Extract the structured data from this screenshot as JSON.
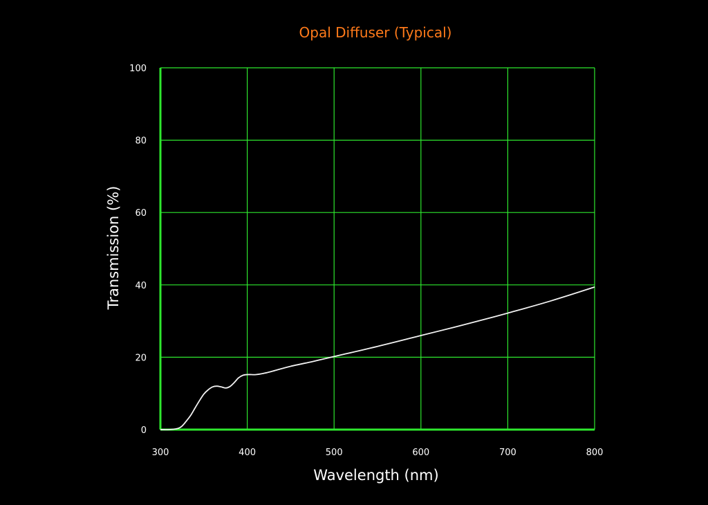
{
  "chart_data": {
    "type": "line",
    "title": "Opal Diffuser (Typical)",
    "xlabel": "Wavelength (nm)",
    "ylabel": "Transmission (%)",
    "xlim": [
      300,
      800
    ],
    "ylim": [
      0,
      100
    ],
    "x_ticks": [
      300,
      400,
      500,
      600,
      700,
      800
    ],
    "y_ticks": [
      0,
      20,
      40,
      60,
      80,
      100
    ],
    "grid": true,
    "colors": {
      "background": "#000000",
      "grid": "#2ee82e",
      "line": "#f2f2f2",
      "title": "#ff7a1a",
      "text": "#ffffff"
    },
    "series": [
      {
        "x": [
          300,
          310,
          320,
          325,
          330,
          335,
          340,
          345,
          350,
          355,
          360,
          365,
          370,
          375,
          380,
          385,
          390,
          395,
          400,
          405,
          410,
          420,
          430,
          450,
          475,
          500,
          550,
          600,
          650,
          700,
          750,
          800
        ],
        "y": [
          0,
          0,
          0.3,
          1,
          2.4,
          4,
          6,
          8,
          9.8,
          11,
          11.8,
          12,
          11.8,
          11.5,
          11.9,
          13,
          14.3,
          15.0,
          15.2,
          15.2,
          15.2,
          15.6,
          16.2,
          17.5,
          18.8,
          20.2,
          23.0,
          26.0,
          29.0,
          32.2,
          35.6,
          39.4
        ]
      }
    ]
  }
}
